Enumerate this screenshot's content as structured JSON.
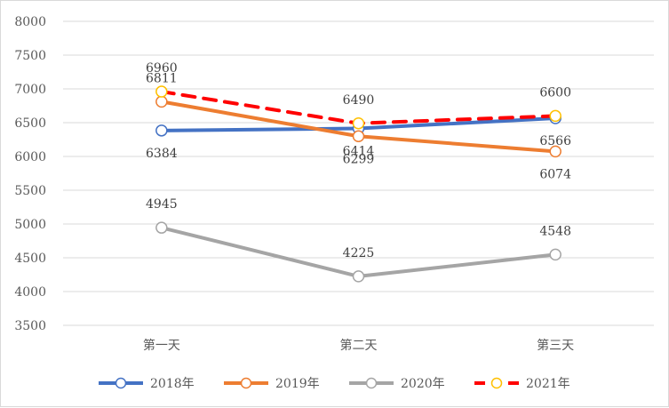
{
  "chart_data": {
    "type": "line",
    "categories": [
      "第一天",
      "第二天",
      "第三天"
    ],
    "ylim": [
      3500,
      8000
    ],
    "yticks": [
      3500,
      4000,
      4500,
      5000,
      5500,
      6000,
      6500,
      7000,
      7500,
      8000
    ],
    "grid": true,
    "legend_position": "bottom",
    "series": [
      {
        "name": "2018年",
        "values": [
          6384,
          6414,
          6566
        ],
        "color": "#4472C4",
        "marker_fill": "#ffffff",
        "dashed": false,
        "label_pos": [
          "below",
          "below",
          "below"
        ]
      },
      {
        "name": "2019年",
        "values": [
          6811,
          6299,
          6074
        ],
        "color": "#ED7D31",
        "marker_fill": "#ffffff",
        "dashed": false,
        "label_pos": [
          "above",
          "below",
          "below"
        ]
      },
      {
        "name": "2020年",
        "values": [
          4945,
          4225,
          4548
        ],
        "color": "#A5A5A5",
        "marker_fill": "#ffffff",
        "dashed": false,
        "label_pos": [
          "above",
          "above",
          "above"
        ]
      },
      {
        "name": "2021年",
        "values": [
          6960,
          6490,
          6600
        ],
        "color": "#FF0000",
        "marker_fill": "#ffffff",
        "marker_stroke": "#FFC000",
        "dashed": true,
        "label_pos": [
          "above",
          "above",
          "above"
        ]
      }
    ]
  }
}
